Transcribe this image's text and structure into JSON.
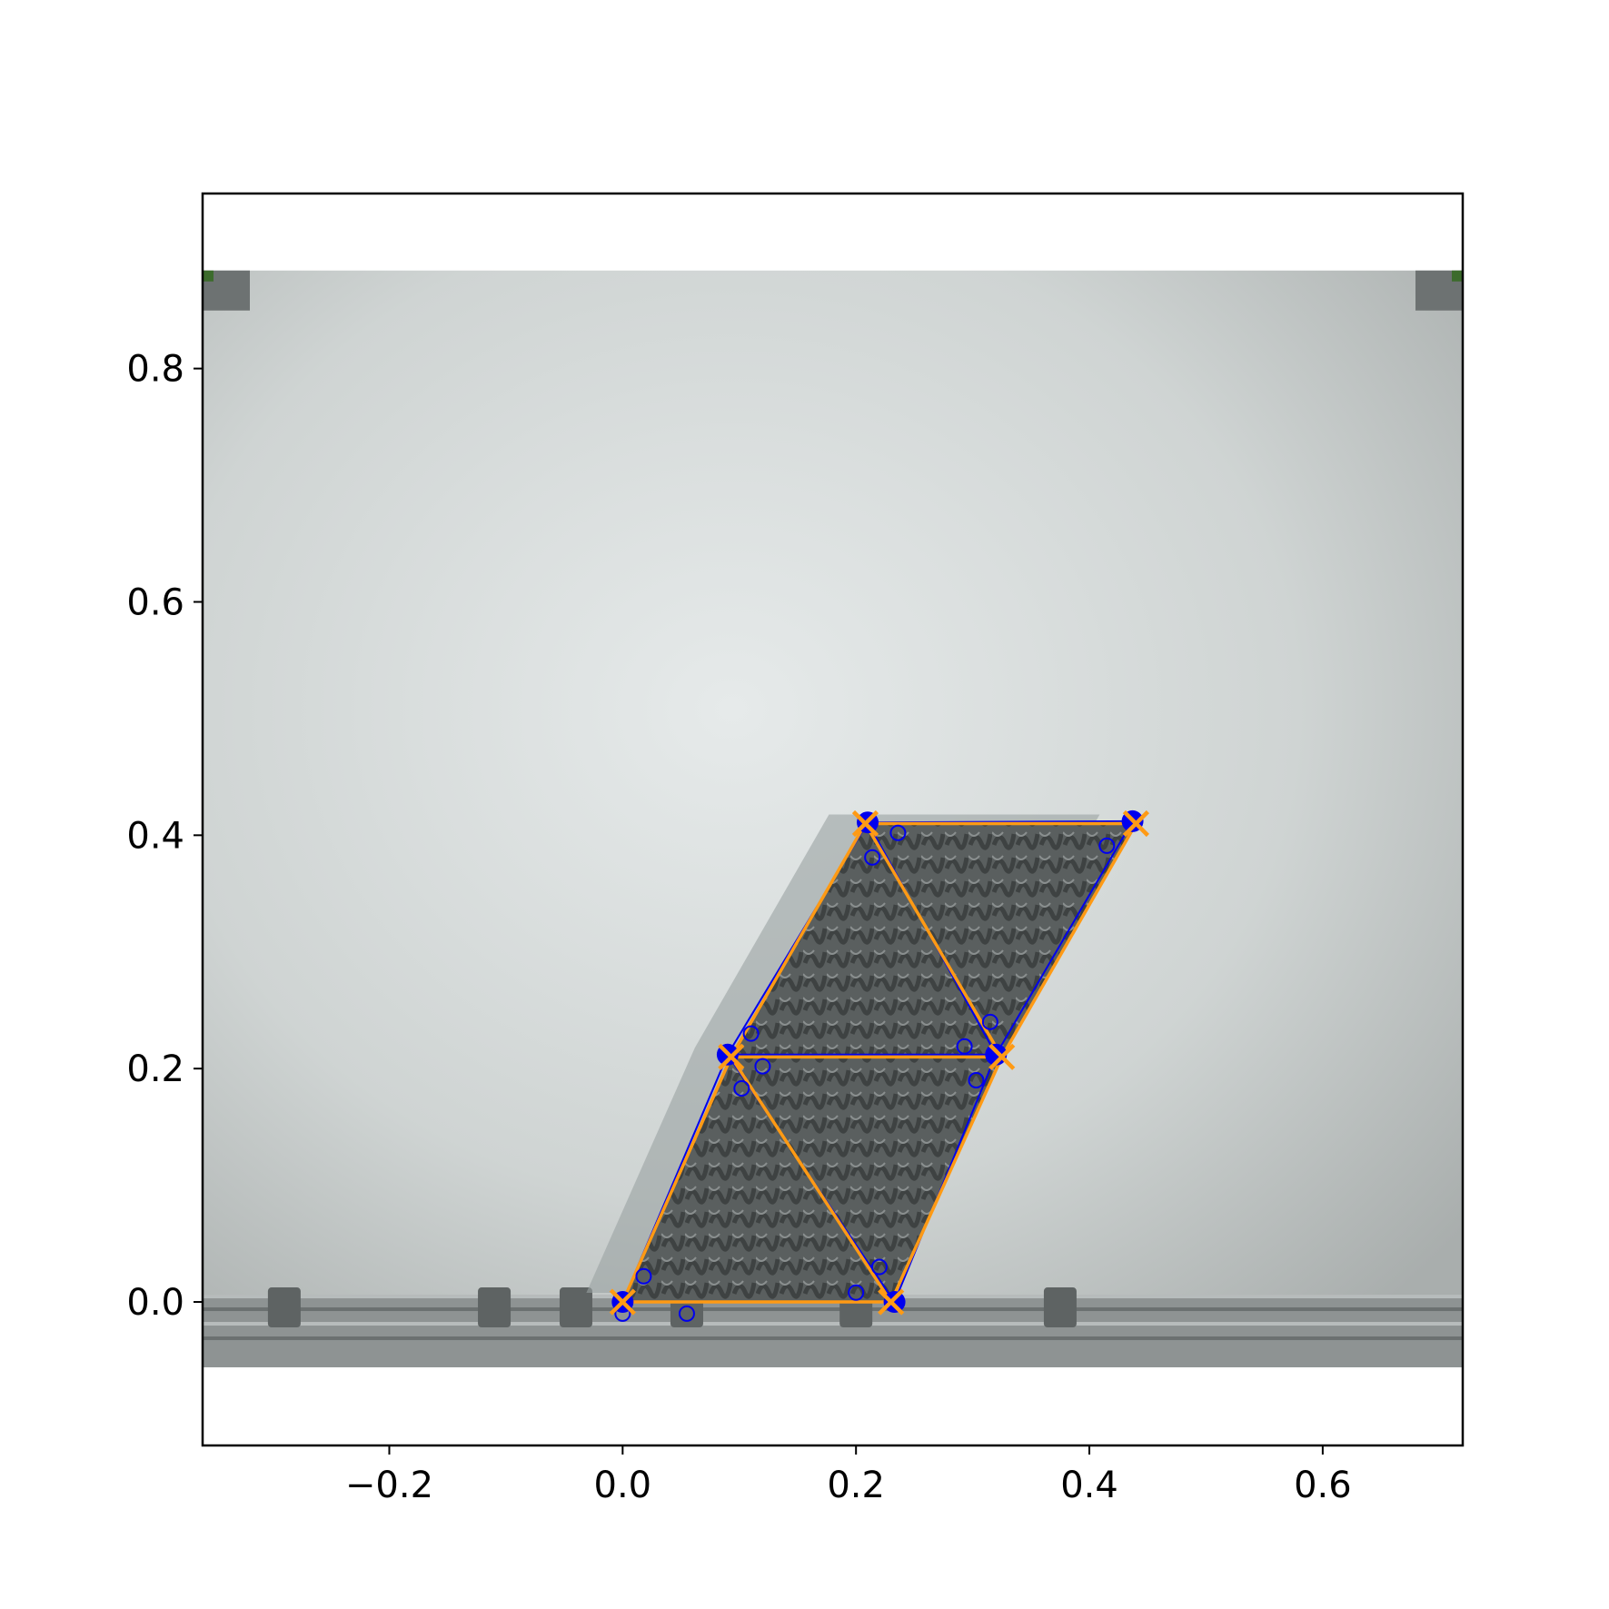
{
  "chart_data": {
    "type": "scatter",
    "title": "",
    "xlabel": "",
    "ylabel": "",
    "xlim": [
      -0.36,
      0.72
    ],
    "ylim": [
      -0.123,
      0.95
    ],
    "xticks": [
      {
        "value": -0.2,
        "label": "−0.2"
      },
      {
        "value": 0.0,
        "label": "0.0"
      },
      {
        "value": 0.2,
        "label": "0.2"
      },
      {
        "value": 0.4,
        "label": "0.4"
      },
      {
        "value": 0.6,
        "label": "0.6"
      }
    ],
    "yticks": [
      {
        "value": 0.0,
        "label": "0.0"
      },
      {
        "value": 0.2,
        "label": "0.2"
      },
      {
        "value": 0.4,
        "label": "0.4"
      },
      {
        "value": 0.6,
        "label": "0.6"
      },
      {
        "value": 0.8,
        "label": "0.8"
      }
    ],
    "grid": false,
    "legend": "none",
    "background_image": {
      "extent": [
        -0.36,
        0.72,
        -0.056,
        0.884
      ],
      "description_colors": {
        "floor": "#c9cecd",
        "rail": "#8e9393",
        "module": "#4b4f4f"
      }
    },
    "series": [
      {
        "role": "orange-lattice",
        "color": "#ff9a14",
        "marker": "x",
        "points": [
          {
            "x": 0.0,
            "y": 0.0
          },
          {
            "x": 0.23,
            "y": 0.0
          },
          {
            "x": 0.093,
            "y": 0.21
          },
          {
            "x": 0.325,
            "y": 0.21
          },
          {
            "x": 0.208,
            "y": 0.41
          },
          {
            "x": 0.44,
            "y": 0.41
          }
        ],
        "edges": [
          [
            0,
            1
          ],
          [
            0,
            2
          ],
          [
            1,
            2
          ],
          [
            1,
            3
          ],
          [
            2,
            3
          ],
          [
            2,
            4
          ],
          [
            3,
            4
          ],
          [
            3,
            5
          ],
          [
            4,
            5
          ]
        ]
      },
      {
        "role": "blue-outline",
        "color": "#0000ee",
        "marker": "o",
        "points": [
          {
            "x": 0.0,
            "y": 0.0
          },
          {
            "x": 0.233,
            "y": 0.0
          },
          {
            "x": 0.09,
            "y": 0.212
          },
          {
            "x": 0.32,
            "y": 0.212
          },
          {
            "x": 0.21,
            "y": 0.411
          },
          {
            "x": 0.437,
            "y": 0.412
          }
        ],
        "edges": [
          [
            0,
            1
          ],
          [
            0,
            2
          ],
          [
            1,
            2
          ],
          [
            1,
            3
          ],
          [
            2,
            3
          ],
          [
            2,
            4
          ],
          [
            3,
            4
          ],
          [
            3,
            5
          ],
          [
            4,
            5
          ]
        ]
      },
      {
        "role": "blue-markers",
        "color": "#0000ee",
        "marker": "small-circle",
        "points": [
          {
            "x": 0.018,
            "y": 0.022
          },
          {
            "x": 0.0,
            "y": -0.01
          },
          {
            "x": 0.055,
            "y": -0.01
          },
          {
            "x": 0.2,
            "y": 0.008
          },
          {
            "x": 0.22,
            "y": 0.03
          },
          {
            "x": 0.102,
            "y": 0.183
          },
          {
            "x": 0.12,
            "y": 0.202
          },
          {
            "x": 0.11,
            "y": 0.23
          },
          {
            "x": 0.293,
            "y": 0.219
          },
          {
            "x": 0.315,
            "y": 0.24
          },
          {
            "x": 0.303,
            "y": 0.19
          },
          {
            "x": 0.214,
            "y": 0.381
          },
          {
            "x": 0.236,
            "y": 0.402
          },
          {
            "x": 0.415,
            "y": 0.391
          }
        ]
      }
    ]
  }
}
